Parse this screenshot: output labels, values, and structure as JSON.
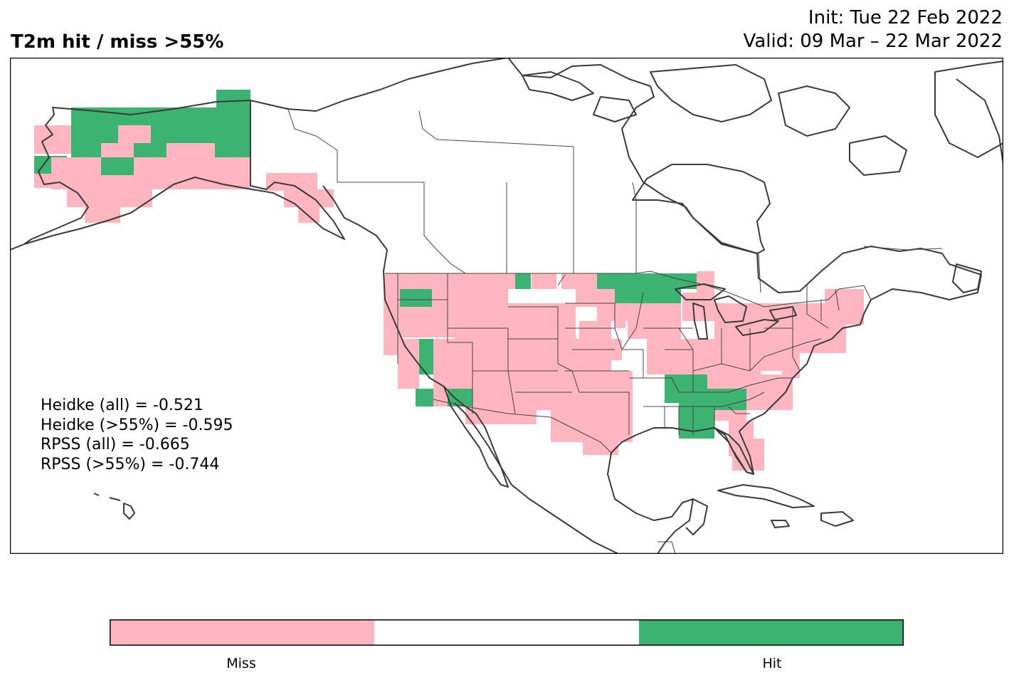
{
  "title": "T2m hit / miss  >55%",
  "init_text": "Init: Tue 22 Feb 2022",
  "valid_text": "Valid: 09 Mar – 22 Mar 2022",
  "scores": [
    "Heidke (all) = -0.521",
    "Heidke (>55%) = -0.595",
    "RPSS (all) = -0.665",
    "RPSS (>55%) = -0.744"
  ],
  "legend": {
    "categories": [
      "Miss",
      "",
      "Hit"
    ],
    "colors": [
      "#ffb6c1",
      "#ffffff",
      "#3cb371"
    ],
    "outline_color": "#000000"
  },
  "map_colors": {
    "coastline": "#3a3a3a",
    "border": "#444444"
  }
}
